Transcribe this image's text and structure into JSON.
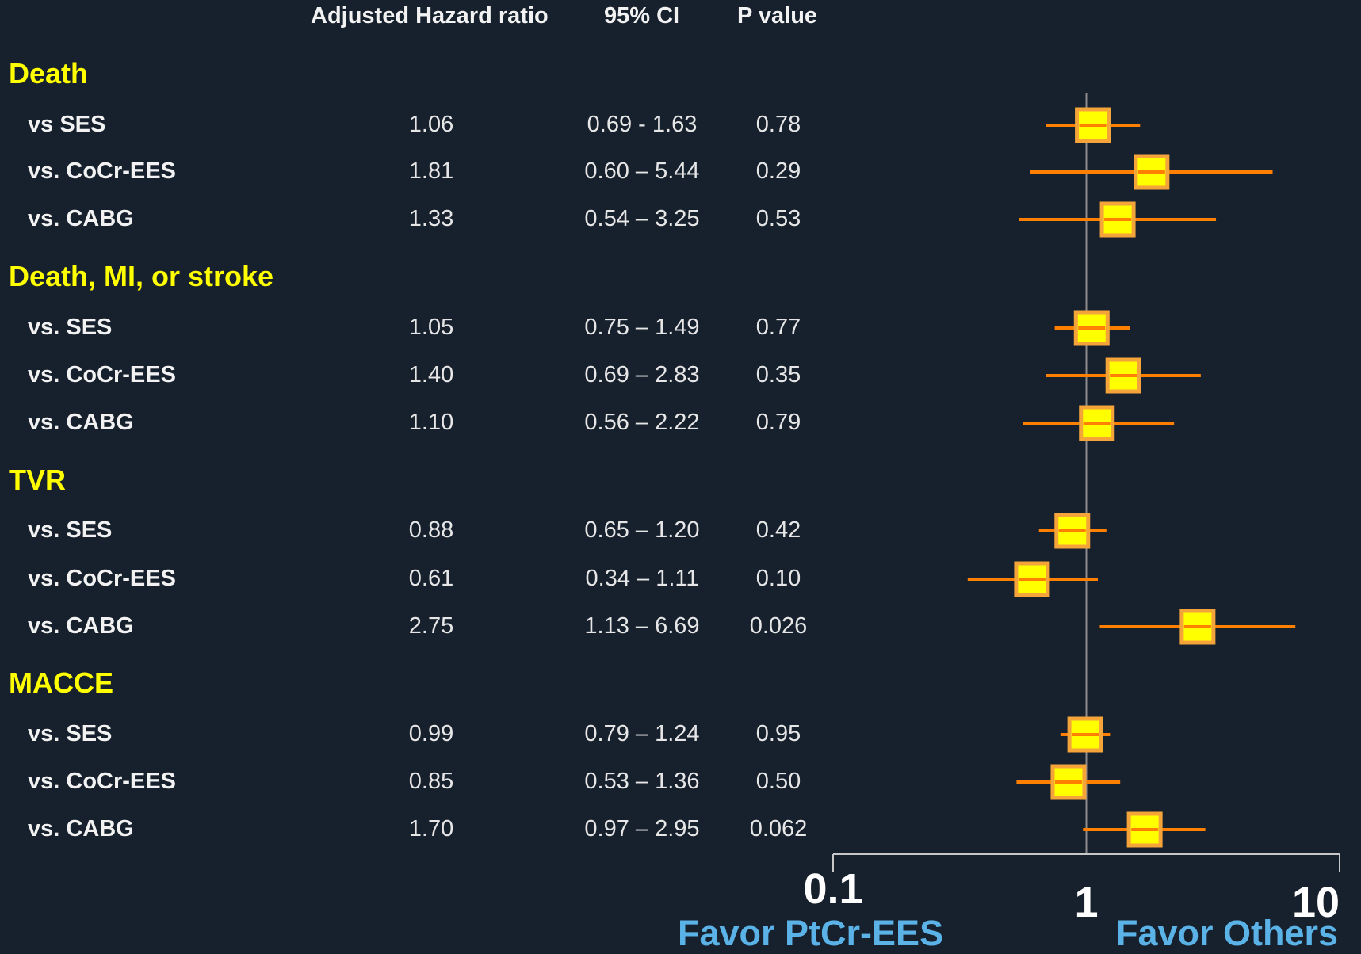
{
  "headers": {
    "hr": "Adjusted Hazard ratio",
    "ci": "95% CI",
    "p": "P value"
  },
  "groups": [
    {
      "title": "Death",
      "rows": [
        {
          "label": "vs SES",
          "hr_text": "1.06",
          "ci_text": "0.69 - 1.63",
          "p_text": "0.78"
        },
        {
          "label": "vs. CoCr-EES",
          "hr_text": "1.81",
          "ci_text": "0.60 – 5.44",
          "p_text": "0.29"
        },
        {
          "label": "vs. CABG",
          "hr_text": "1.33",
          "ci_text": "0.54 – 3.25",
          "p_text": "0.53"
        }
      ]
    },
    {
      "title": "Death, MI, or stroke",
      "rows": [
        {
          "label": "vs. SES",
          "hr_text": "1.05",
          "ci_text": "0.75 – 1.49",
          "p_text": "0.77"
        },
        {
          "label": "vs. CoCr-EES",
          "hr_text": "1.40",
          "ci_text": "0.69 – 2.83",
          "p_text": "0.35"
        },
        {
          "label": "vs. CABG",
          "hr_text": "1.10",
          "ci_text": "0.56 – 2.22",
          "p_text": "0.79"
        }
      ]
    },
    {
      "title": "TVR",
      "rows": [
        {
          "label": "vs. SES",
          "hr_text": "0.88",
          "ci_text": "0.65 – 1.20",
          "p_text": "0.42"
        },
        {
          "label": "vs. CoCr-EES",
          "hr_text": "0.61",
          "ci_text": "0.34 – 1.11",
          "p_text": "0.10"
        },
        {
          "label": "vs. CABG",
          "hr_text": "2.75",
          "ci_text": "1.13 – 6.69",
          "p_text": "0.026"
        }
      ]
    },
    {
      "title": "MACCE",
      "rows": [
        {
          "label": "vs. SES",
          "hr_text": "0.99",
          "ci_text": "0.79 – 1.24",
          "p_text": "0.95"
        },
        {
          "label": "vs. CoCr-EES",
          "hr_text": "0.85",
          "ci_text": "0.53 – 1.36",
          "p_text": "0.50"
        },
        {
          "label": "vs. CABG",
          "hr_text": "1.70",
          "ci_text": "0.97 – 2.95",
          "p_text": "0.062"
        }
      ]
    }
  ],
  "axis": {
    "tick_labels": [
      "0.1",
      "1",
      "10"
    ]
  },
  "favor": {
    "left": "Favor PtCr-EES",
    "right": "Favor Others"
  },
  "colors": {
    "background": "#17202d",
    "marker_fill": "#ffff00",
    "marker_border": "#f5a43a",
    "ci_line": "#ff8000",
    "reference_line": "#8c8c8c",
    "group_title": "#ffff00",
    "favor_text": "#5ab2e6"
  },
  "chart_data": {
    "type": "scatter",
    "scale": "log",
    "xlim": [
      0.1,
      10
    ],
    "reference_value": 1,
    "series": [
      {
        "group": "Death",
        "label": "vs SES",
        "hr": 1.06,
        "ci": [
          0.69,
          1.63
        ],
        "p": 0.78
      },
      {
        "group": "Death",
        "label": "vs. CoCr-EES",
        "hr": 1.81,
        "ci": [
          0.6,
          5.44
        ],
        "p": 0.29
      },
      {
        "group": "Death",
        "label": "vs. CABG",
        "hr": 1.33,
        "ci": [
          0.54,
          3.25
        ],
        "p": 0.53
      },
      {
        "group": "Death, MI, or stroke",
        "label": "vs. SES",
        "hr": 1.05,
        "ci": [
          0.75,
          1.49
        ],
        "p": 0.77
      },
      {
        "group": "Death, MI, or stroke",
        "label": "vs. CoCr-EES",
        "hr": 1.4,
        "ci": [
          0.69,
          2.83
        ],
        "p": 0.35
      },
      {
        "group": "Death, MI, or stroke",
        "label": "vs. CABG",
        "hr": 1.1,
        "ci": [
          0.56,
          2.22
        ],
        "p": 0.79
      },
      {
        "group": "TVR",
        "label": "vs. SES",
        "hr": 0.88,
        "ci": [
          0.65,
          1.2
        ],
        "p": 0.42
      },
      {
        "group": "TVR",
        "label": "vs. CoCr-EES",
        "hr": 0.61,
        "ci": [
          0.34,
          1.11
        ],
        "p": 0.1
      },
      {
        "group": "TVR",
        "label": "vs. CABG",
        "hr": 2.75,
        "ci": [
          1.13,
          6.69
        ],
        "p": 0.026
      },
      {
        "group": "MACCE",
        "label": "vs. SES",
        "hr": 0.99,
        "ci": [
          0.79,
          1.24
        ],
        "p": 0.95
      },
      {
        "group": "MACCE",
        "label": "vs. CoCr-EES",
        "hr": 0.85,
        "ci": [
          0.53,
          1.36
        ],
        "p": 0.5
      },
      {
        "group": "MACCE",
        "label": "vs. CABG",
        "hr": 1.7,
        "ci": [
          0.97,
          2.95
        ],
        "p": 0.062
      }
    ]
  }
}
